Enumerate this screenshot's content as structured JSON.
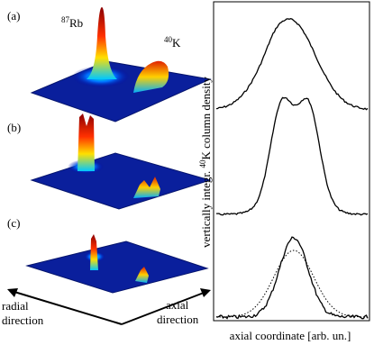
{
  "panels": [
    {
      "label": "(a)",
      "species": [
        {
          "sup": "87",
          "base": "Rb"
        },
        {
          "sup": "40",
          "base": "K"
        }
      ]
    },
    {
      "label": "(b)"
    },
    {
      "label": "(c)"
    }
  ],
  "axes3d": {
    "radial": [
      "radial",
      "direction"
    ],
    "axial": [
      "axial",
      "direction"
    ]
  },
  "profile": {
    "ylabel": {
      "pre": "vertically integr. ",
      "sup": "40",
      "post": "K column density"
    },
    "xlabel": "axial coordinate [arb. un.]"
  }
}
